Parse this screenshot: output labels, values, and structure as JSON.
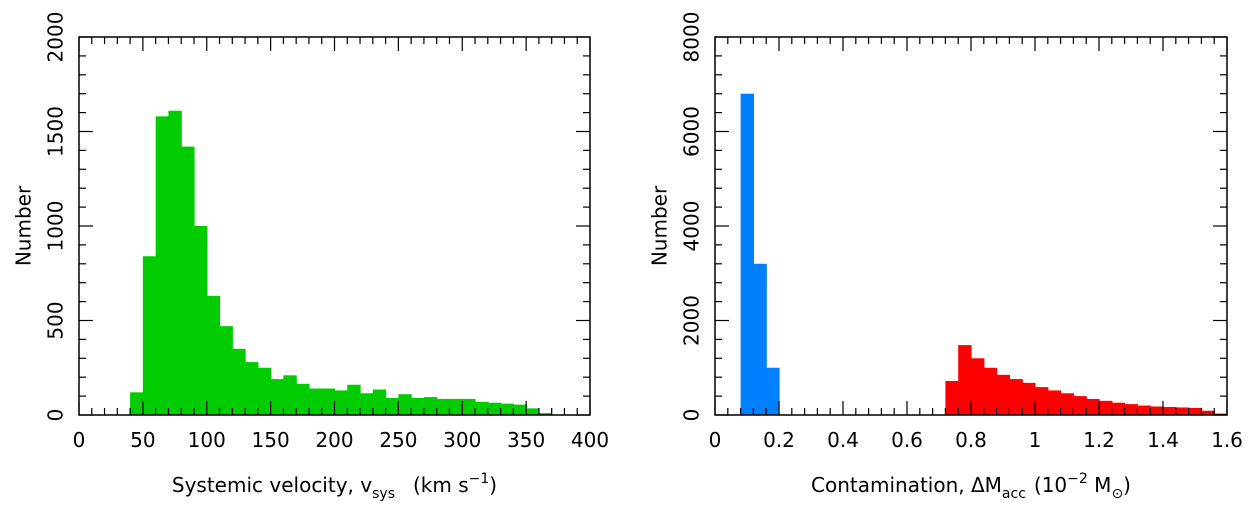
{
  "chart_data": [
    {
      "type": "bar",
      "xlabel": "Systemic velocity, v",
      "xlabel_sub": "sys",
      "xlabel_unit_pre": "(km s",
      "xlabel_unit_sup": "−1",
      "xlabel_unit_post": ")",
      "ylabel": "Number",
      "xlim": [
        0,
        400
      ],
      "ylim": [
        0,
        2000
      ],
      "x_ticks": [
        "0",
        "50",
        "100",
        "150",
        "200",
        "250",
        "300",
        "350",
        "400"
      ],
      "y_ticks": [
        "0",
        "500",
        "1000",
        "1500",
        "2000"
      ],
      "bin_width": 10,
      "series": [
        {
          "color": "#00cc00",
          "bins": [
            {
              "x0": 40,
              "value": 120
            },
            {
              "x0": 50,
              "value": 840
            },
            {
              "x0": 60,
              "value": 1580
            },
            {
              "x0": 70,
              "value": 1610
            },
            {
              "x0": 80,
              "value": 1420
            },
            {
              "x0": 90,
              "value": 1000
            },
            {
              "x0": 100,
              "value": 630
            },
            {
              "x0": 110,
              "value": 470
            },
            {
              "x0": 120,
              "value": 350
            },
            {
              "x0": 130,
              "value": 280
            },
            {
              "x0": 140,
              "value": 250
            },
            {
              "x0": 150,
              "value": 190
            },
            {
              "x0": 160,
              "value": 210
            },
            {
              "x0": 170,
              "value": 165
            },
            {
              "x0": 180,
              "value": 140
            },
            {
              "x0": 190,
              "value": 140
            },
            {
              "x0": 200,
              "value": 130
            },
            {
              "x0": 210,
              "value": 160
            },
            {
              "x0": 220,
              "value": 115
            },
            {
              "x0": 230,
              "value": 135
            },
            {
              "x0": 240,
              "value": 90
            },
            {
              "x0": 250,
              "value": 110
            },
            {
              "x0": 260,
              "value": 90
            },
            {
              "x0": 270,
              "value": 95
            },
            {
              "x0": 280,
              "value": 85
            },
            {
              "x0": 290,
              "value": 85
            },
            {
              "x0": 300,
              "value": 85
            },
            {
              "x0": 310,
              "value": 70
            },
            {
              "x0": 320,
              "value": 65
            },
            {
              "x0": 330,
              "value": 60
            },
            {
              "x0": 340,
              "value": 55
            },
            {
              "x0": 350,
              "value": 35
            },
            {
              "x0": 360,
              "value": 10
            }
          ]
        }
      ]
    },
    {
      "type": "bar",
      "xlabel": "Contamination, ΔM",
      "xlabel_sub": "acc",
      "xlabel_unit_pre": "(10",
      "xlabel_unit_sup": "−2",
      "xlabel_unit_mid": " M",
      "xlabel_unit_sub": "⊙",
      "xlabel_unit_post": ")",
      "ylabel": "Number",
      "xlim": [
        0,
        1.6
      ],
      "ylim": [
        0,
        8000
      ],
      "x_ticks": [
        "0",
        "0.2",
        "0.4",
        "0.6",
        "0.8",
        "1",
        "1.2",
        "1.4",
        "1.6"
      ],
      "y_ticks": [
        "0",
        "2000",
        "4000",
        "6000",
        "8000"
      ],
      "bin_width": 0.04,
      "series": [
        {
          "color": "#0080ff",
          "bins": [
            {
              "x0": 0.08,
              "value": 6800
            },
            {
              "x0": 0.12,
              "value": 3200
            },
            {
              "x0": 0.16,
              "value": 1000
            }
          ]
        },
        {
          "color": "#ff0000",
          "bins": [
            {
              "x0": 0.72,
              "value": 720
            },
            {
              "x0": 0.76,
              "value": 1480
            },
            {
              "x0": 0.8,
              "value": 1200
            },
            {
              "x0": 0.84,
              "value": 1000
            },
            {
              "x0": 0.88,
              "value": 850
            },
            {
              "x0": 0.92,
              "value": 760
            },
            {
              "x0": 0.96,
              "value": 680
            },
            {
              "x0": 1.0,
              "value": 590
            },
            {
              "x0": 1.04,
              "value": 520
            },
            {
              "x0": 1.08,
              "value": 460
            },
            {
              "x0": 1.12,
              "value": 400
            },
            {
              "x0": 1.16,
              "value": 340
            },
            {
              "x0": 1.2,
              "value": 300
            },
            {
              "x0": 1.24,
              "value": 260
            },
            {
              "x0": 1.28,
              "value": 230
            },
            {
              "x0": 1.32,
              "value": 200
            },
            {
              "x0": 1.36,
              "value": 180
            },
            {
              "x0": 1.4,
              "value": 170
            },
            {
              "x0": 1.44,
              "value": 160
            },
            {
              "x0": 1.48,
              "value": 150
            },
            {
              "x0": 1.52,
              "value": 90
            },
            {
              "x0": 1.56,
              "value": 30
            }
          ]
        }
      ]
    }
  ]
}
